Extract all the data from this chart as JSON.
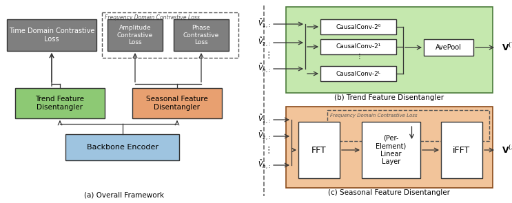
{
  "fig_bg": "#ffffff",
  "colors": {
    "gray_box": "#7f7f7f",
    "green_box": "#8dc974",
    "orange_box": "#e8a070",
    "blue_box": "#9ec4e0",
    "white_box": "#ffffff",
    "green_bg": "#c5e8ae",
    "orange_bg": "#f2c49a",
    "line": "#333333",
    "dashed": "#666666"
  },
  "caption_a": "(a) Overall Framework",
  "caption_b": "(b) Trend Feature Disentangler",
  "caption_c": "(c) Seasonal Feature Disentangler",
  "freq_label": "Frequency Domain Contrastive Loss",
  "labels": {
    "time_domain": "Time Domain Contrastive\nLoss",
    "amplitude": "Amplitude\nContrastive\nLoss",
    "phase": "Phase\nContrastive\nLoss",
    "trend": "Trend Feature\nDisentangler",
    "seasonal": "Seasonal Feature\nDisentangler",
    "backbone": "Backbone Encoder",
    "causal0": "CausalConv-2⁰",
    "causal1": "CausalConv-2¹",
    "causalL": "CausalConv-2ᴸ",
    "avepool": "AvePool",
    "fft": "FFT",
    "per_element": "(Per-\nElement)\nLinear\nLayer",
    "ifft": "iFFT",
    "vT": "$\\mathbf{V}^{(T)}$",
    "vS": "$\\mathbf{V}^{(S)}$",
    "v1": "$\\tilde{V}_{1,:}$",
    "v2": "$\\tilde{V}_{2,:}$",
    "vh": "$\\tilde{V}_{h,:}$"
  }
}
